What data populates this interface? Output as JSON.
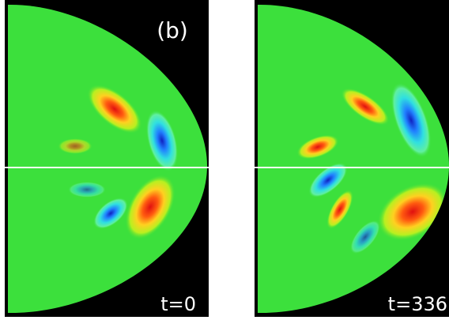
{
  "label": "(b)",
  "panels": [
    {
      "time": "t=0"
    },
    {
      "time": "t=336"
    }
  ]
}
